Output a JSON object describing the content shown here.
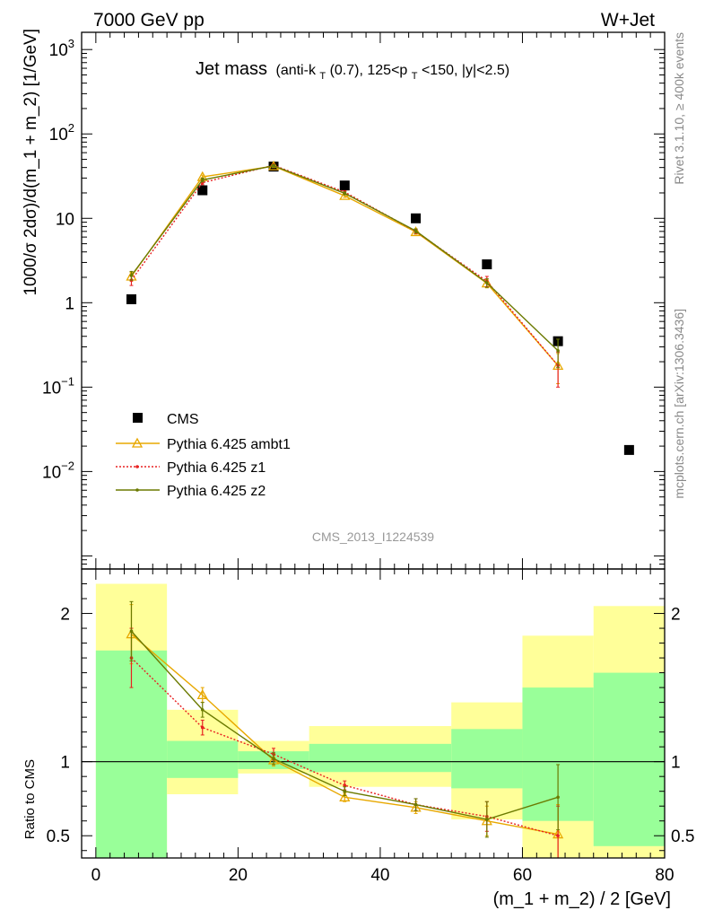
{
  "header": {
    "left": "7000 GeV pp",
    "right": "W+Jet"
  },
  "plot_title": {
    "main": "Jet mass",
    "sub_pre": "(anti-k",
    "sub_T1": "T",
    "sub_mid": "(0.7), 125<p",
    "sub_T2": "T",
    "sub_post": "<150, |y|<2.5)"
  },
  "side_labels": {
    "rivet": "Rivet 3.1.10, ≥ 400k events",
    "mcplots": "mcplots.cern.ch [arXiv:1306.3436]"
  },
  "watermark": "CMS_2013_I1224539",
  "colors": {
    "data": "#000000",
    "ambt1": "#e8a800",
    "z1": "#e82020",
    "z2": "#6b7a00",
    "band_inner": "#99ff99",
    "band_outer": "#ffff99"
  },
  "chart_data": [
    {
      "type": "scatter",
      "name": "main",
      "ylabel": "1000/σ 2dσ)/d(m_1 + m_2) [1/GeV]",
      "yscale": "log",
      "xlim": [
        -2,
        80
      ],
      "ylim": [
        0.0007,
        1600
      ],
      "y_ticks": [
        {
          "value": 0.01,
          "mantissa": "10",
          "exp": "−2"
        },
        {
          "value": 0.1,
          "mantissa": "10",
          "exp": "−1"
        },
        {
          "value": 1,
          "mantissa": "1",
          "exp": ""
        },
        {
          "value": 10,
          "mantissa": "10",
          "exp": ""
        },
        {
          "value": 100,
          "mantissa": "10",
          "exp": "2"
        },
        {
          "value": 1000,
          "mantissa": "10",
          "exp": "3"
        }
      ],
      "legend": {
        "position": "bottom-left",
        "entries": [
          "CMS",
          "Pythia 6.425 ambt1",
          "Pythia 6.425 z1",
          "Pythia 6.425 z2"
        ]
      },
      "series": [
        {
          "name": "CMS",
          "kind": "data",
          "x": [
            5,
            15,
            25,
            35,
            45,
            55,
            65,
            75
          ],
          "y": [
            1.1,
            21.5,
            41,
            24.5,
            10,
            2.85,
            0.35,
            0.018
          ]
        },
        {
          "name": "Pythia 6.425 ambt1",
          "kind": "ambt1",
          "x": [
            5,
            15,
            25,
            35,
            45,
            55,
            65
          ],
          "y": [
            2.05,
            31,
            41.5,
            18.5,
            6.9,
            1.7,
            0.18
          ],
          "err": [
            0.25,
            1.5,
            1.5,
            0.8,
            0.4,
            0.2,
            0.07
          ]
        },
        {
          "name": "Pythia 6.425 z1",
          "kind": "z1",
          "x": [
            5,
            15,
            25,
            35,
            45,
            55,
            65
          ],
          "y": [
            1.85,
            26.5,
            42.5,
            20.5,
            7.0,
            1.8,
            0.18
          ],
          "err": [
            0.25,
            1.5,
            1.5,
            0.8,
            0.4,
            0.25,
            0.08
          ]
        },
        {
          "name": "Pythia 6.425 z2",
          "kind": "z2",
          "x": [
            5,
            15,
            25,
            35,
            45,
            55,
            65
          ],
          "y": [
            2.1,
            28.5,
            42.0,
            19.8,
            7.1,
            1.72,
            0.27
          ],
          "err": [
            0.25,
            1.5,
            1.5,
            0.8,
            0.4,
            0.2,
            0.1
          ]
        }
      ]
    },
    {
      "type": "scatter",
      "name": "ratio",
      "ylabel": "Ratio to CMS",
      "xlabel": "(m_1 + m_2) / 2 [GeV]",
      "xlim": [
        -2,
        80
      ],
      "ylim": [
        0.35,
        2.3
      ],
      "x_ticks": [
        0,
        20,
        40,
        60,
        80
      ],
      "y_ticks": [
        0.5,
        1,
        2
      ],
      "bands": [
        {
          "x0": 0,
          "x1": 10,
          "inner": [
            0.2,
            1.75
          ],
          "outer": [
            0.2,
            2.2
          ]
        },
        {
          "x0": 10,
          "x1": 20,
          "inner": [
            0.89,
            1.14
          ],
          "outer": [
            0.78,
            1.35
          ]
        },
        {
          "x0": 20,
          "x1": 30,
          "inner": [
            0.95,
            1.07
          ],
          "outer": [
            0.92,
            1.14
          ]
        },
        {
          "x0": 30,
          "x1": 50,
          "inner": [
            0.93,
            1.12
          ],
          "outer": [
            0.83,
            1.24
          ]
        },
        {
          "x0": 50,
          "x1": 60,
          "inner": [
            0.82,
            1.22
          ],
          "outer": [
            0.61,
            1.4
          ]
        },
        {
          "x0": 60,
          "x1": 70,
          "inner": [
            0.6,
            1.5
          ],
          "outer": [
            0.2,
            1.85
          ]
        },
        {
          "x0": 70,
          "x1": 80,
          "inner": [
            0.43,
            1.6
          ],
          "outer": [
            0.2,
            2.05
          ]
        }
      ],
      "series": [
        {
          "name": "Pythia 6.425 ambt1",
          "kind": "ambt1",
          "x": [
            5,
            15,
            25,
            35,
            45,
            55,
            65
          ],
          "y": [
            1.86,
            1.45,
            1.01,
            0.76,
            0.69,
            0.6,
            0.51
          ],
          "err": [
            0.2,
            0.05,
            0.04,
            0.03,
            0.04,
            0.1,
            0.2
          ]
        },
        {
          "name": "Pythia 6.425 z1",
          "kind": "z1",
          "x": [
            5,
            15,
            25,
            35,
            45,
            55,
            65
          ],
          "y": [
            1.7,
            1.23,
            1.05,
            0.84,
            0.71,
            0.63,
            0.5
          ],
          "err": [
            0.2,
            0.05,
            0.04,
            0.03,
            0.04,
            0.1,
            0.2
          ]
        },
        {
          "name": "Pythia 6.425 z2",
          "kind": "z2",
          "x": [
            5,
            15,
            25,
            35,
            45,
            55,
            65
          ],
          "y": [
            1.88,
            1.35,
            1.02,
            0.8,
            0.71,
            0.61,
            0.76
          ],
          "err": [
            0.2,
            0.05,
            0.04,
            0.03,
            0.04,
            0.12,
            0.22
          ]
        }
      ]
    }
  ]
}
